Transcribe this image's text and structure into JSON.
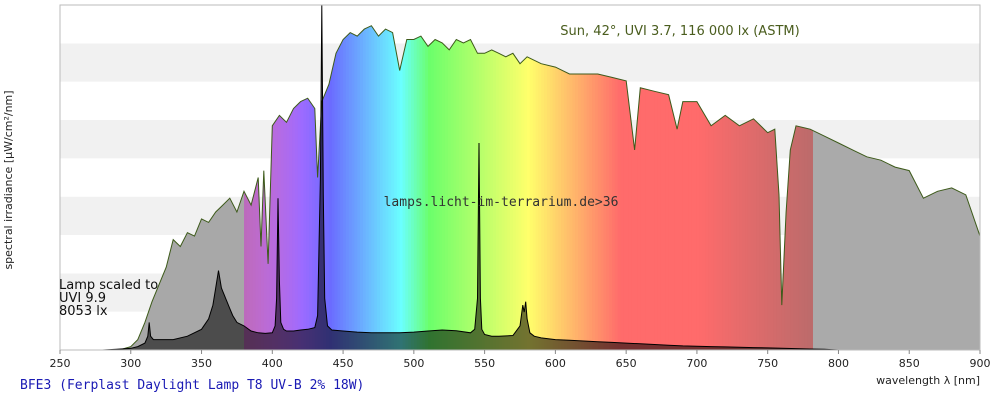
{
  "chart_data": {
    "type": "area",
    "caption": "BFE3 (Ferplast Daylight Lamp T8 UV-B 2% 18W)",
    "watermark": "lamps.licht-im-terrarium.de>36",
    "xlabel": "wavelength λ [nm]",
    "ylabel": "spectral irradiance [µW/cm²/nm]",
    "xlim": [
      250,
      900
    ],
    "ylim": [
      0,
      1
    ],
    "y_tick_labels_shown": false,
    "grid": "horizontal bands",
    "x_ticks": [
      250,
      300,
      350,
      400,
      450,
      500,
      550,
      600,
      650,
      700,
      750,
      800,
      850,
      900
    ],
    "sun_label": "Sun, 42°, UVI 3.7, 116 000 lx (ASTM)",
    "lamp_label": {
      "line1": "Lamp scaled to",
      "line2": "UVI 9.9",
      "line3": "8053 lx"
    },
    "series": [
      {
        "name": "Sun, 42°, UVI 3.7, 116 000 lx (ASTM)",
        "x": [
          292,
          300,
          305,
          310,
          315,
          320,
          325,
          330,
          335,
          340,
          345,
          350,
          355,
          360,
          365,
          370,
          375,
          380,
          385,
          390,
          392,
          394,
          397,
          400,
          405,
          410,
          415,
          420,
          425,
          430,
          432,
          435,
          440,
          445,
          450,
          455,
          460,
          465,
          470,
          475,
          480,
          485,
          490,
          495,
          500,
          505,
          510,
          515,
          520,
          525,
          530,
          535,
          540,
          545,
          550,
          555,
          560,
          565,
          570,
          575,
          580,
          590,
          600,
          610,
          620,
          630,
          640,
          650,
          656,
          660,
          670,
          680,
          686,
          690,
          700,
          710,
          720,
          730,
          740,
          750,
          755,
          758,
          760,
          763,
          766,
          770,
          780,
          790,
          800,
          810,
          820,
          830,
          840,
          850,
          860,
          870,
          880,
          890,
          900
        ],
        "values": [
          0,
          0.01,
          0.03,
          0.08,
          0.14,
          0.19,
          0.24,
          0.32,
          0.3,
          0.34,
          0.33,
          0.38,
          0.37,
          0.4,
          0.42,
          0.44,
          0.4,
          0.46,
          0.42,
          0.5,
          0.3,
          0.52,
          0.25,
          0.65,
          0.68,
          0.66,
          0.7,
          0.72,
          0.73,
          0.7,
          0.5,
          0.72,
          0.77,
          0.86,
          0.9,
          0.92,
          0.91,
          0.93,
          0.94,
          0.91,
          0.93,
          0.92,
          0.81,
          0.9,
          0.9,
          0.91,
          0.88,
          0.9,
          0.89,
          0.87,
          0.9,
          0.89,
          0.9,
          0.86,
          0.86,
          0.87,
          0.86,
          0.85,
          0.86,
          0.83,
          0.85,
          0.83,
          0.82,
          0.8,
          0.8,
          0.8,
          0.79,
          0.78,
          0.58,
          0.76,
          0.75,
          0.74,
          0.64,
          0.72,
          0.72,
          0.65,
          0.68,
          0.65,
          0.67,
          0.63,
          0.64,
          0.45,
          0.13,
          0.4,
          0.58,
          0.65,
          0.64,
          0.62,
          0.6,
          0.58,
          0.56,
          0.55,
          0.53,
          0.52,
          0.44,
          0.46,
          0.47,
          0.45,
          0.33
        ]
      },
      {
        "name": "Lamp scaled to UVI 9.9, 8053 lx",
        "x": [
          280,
          290,
          300,
          305,
          310,
          312,
          313,
          314,
          316,
          320,
          330,
          340,
          350,
          355,
          358,
          360,
          362,
          364,
          365,
          366,
          367,
          368,
          370,
          372,
          375,
          380,
          385,
          390,
          395,
          400,
          402,
          403,
          404,
          405,
          406,
          408,
          410,
          415,
          420,
          425,
          430,
          432,
          434,
          435,
          436,
          437,
          439,
          442,
          450,
          460,
          470,
          480,
          490,
          500,
          510,
          520,
          530,
          540,
          543,
          545,
          546,
          547,
          548,
          550,
          555,
          560,
          570,
          575,
          577,
          578,
          579,
          580,
          582,
          585,
          590,
          600,
          610,
          620,
          630,
          640,
          650,
          660,
          670,
          680,
          690,
          700,
          710,
          720,
          730,
          740,
          750,
          760,
          770,
          780,
          790,
          800
        ],
        "values": [
          0,
          0.002,
          0.005,
          0.01,
          0.02,
          0.04,
          0.08,
          0.04,
          0.03,
          0.03,
          0.03,
          0.04,
          0.06,
          0.09,
          0.13,
          0.18,
          0.23,
          0.18,
          0.17,
          0.16,
          0.15,
          0.14,
          0.12,
          0.1,
          0.08,
          0.07,
          0.055,
          0.05,
          0.048,
          0.05,
          0.07,
          0.15,
          0.44,
          0.2,
          0.08,
          0.06,
          0.055,
          0.055,
          0.058,
          0.06,
          0.065,
          0.1,
          0.5,
          1.0,
          0.45,
          0.15,
          0.07,
          0.058,
          0.055,
          0.052,
          0.05,
          0.05,
          0.05,
          0.052,
          0.055,
          0.058,
          0.056,
          0.05,
          0.06,
          0.15,
          0.6,
          0.15,
          0.06,
          0.045,
          0.04,
          0.04,
          0.042,
          0.07,
          0.13,
          0.11,
          0.14,
          0.09,
          0.05,
          0.04,
          0.035,
          0.03,
          0.028,
          0.026,
          0.024,
          0.022,
          0.02,
          0.018,
          0.016,
          0.014,
          0.012,
          0.011,
          0.01,
          0.009,
          0.008,
          0.007,
          0.006,
          0.005,
          0.004,
          0.003,
          0.002,
          0
        ]
      }
    ]
  }
}
